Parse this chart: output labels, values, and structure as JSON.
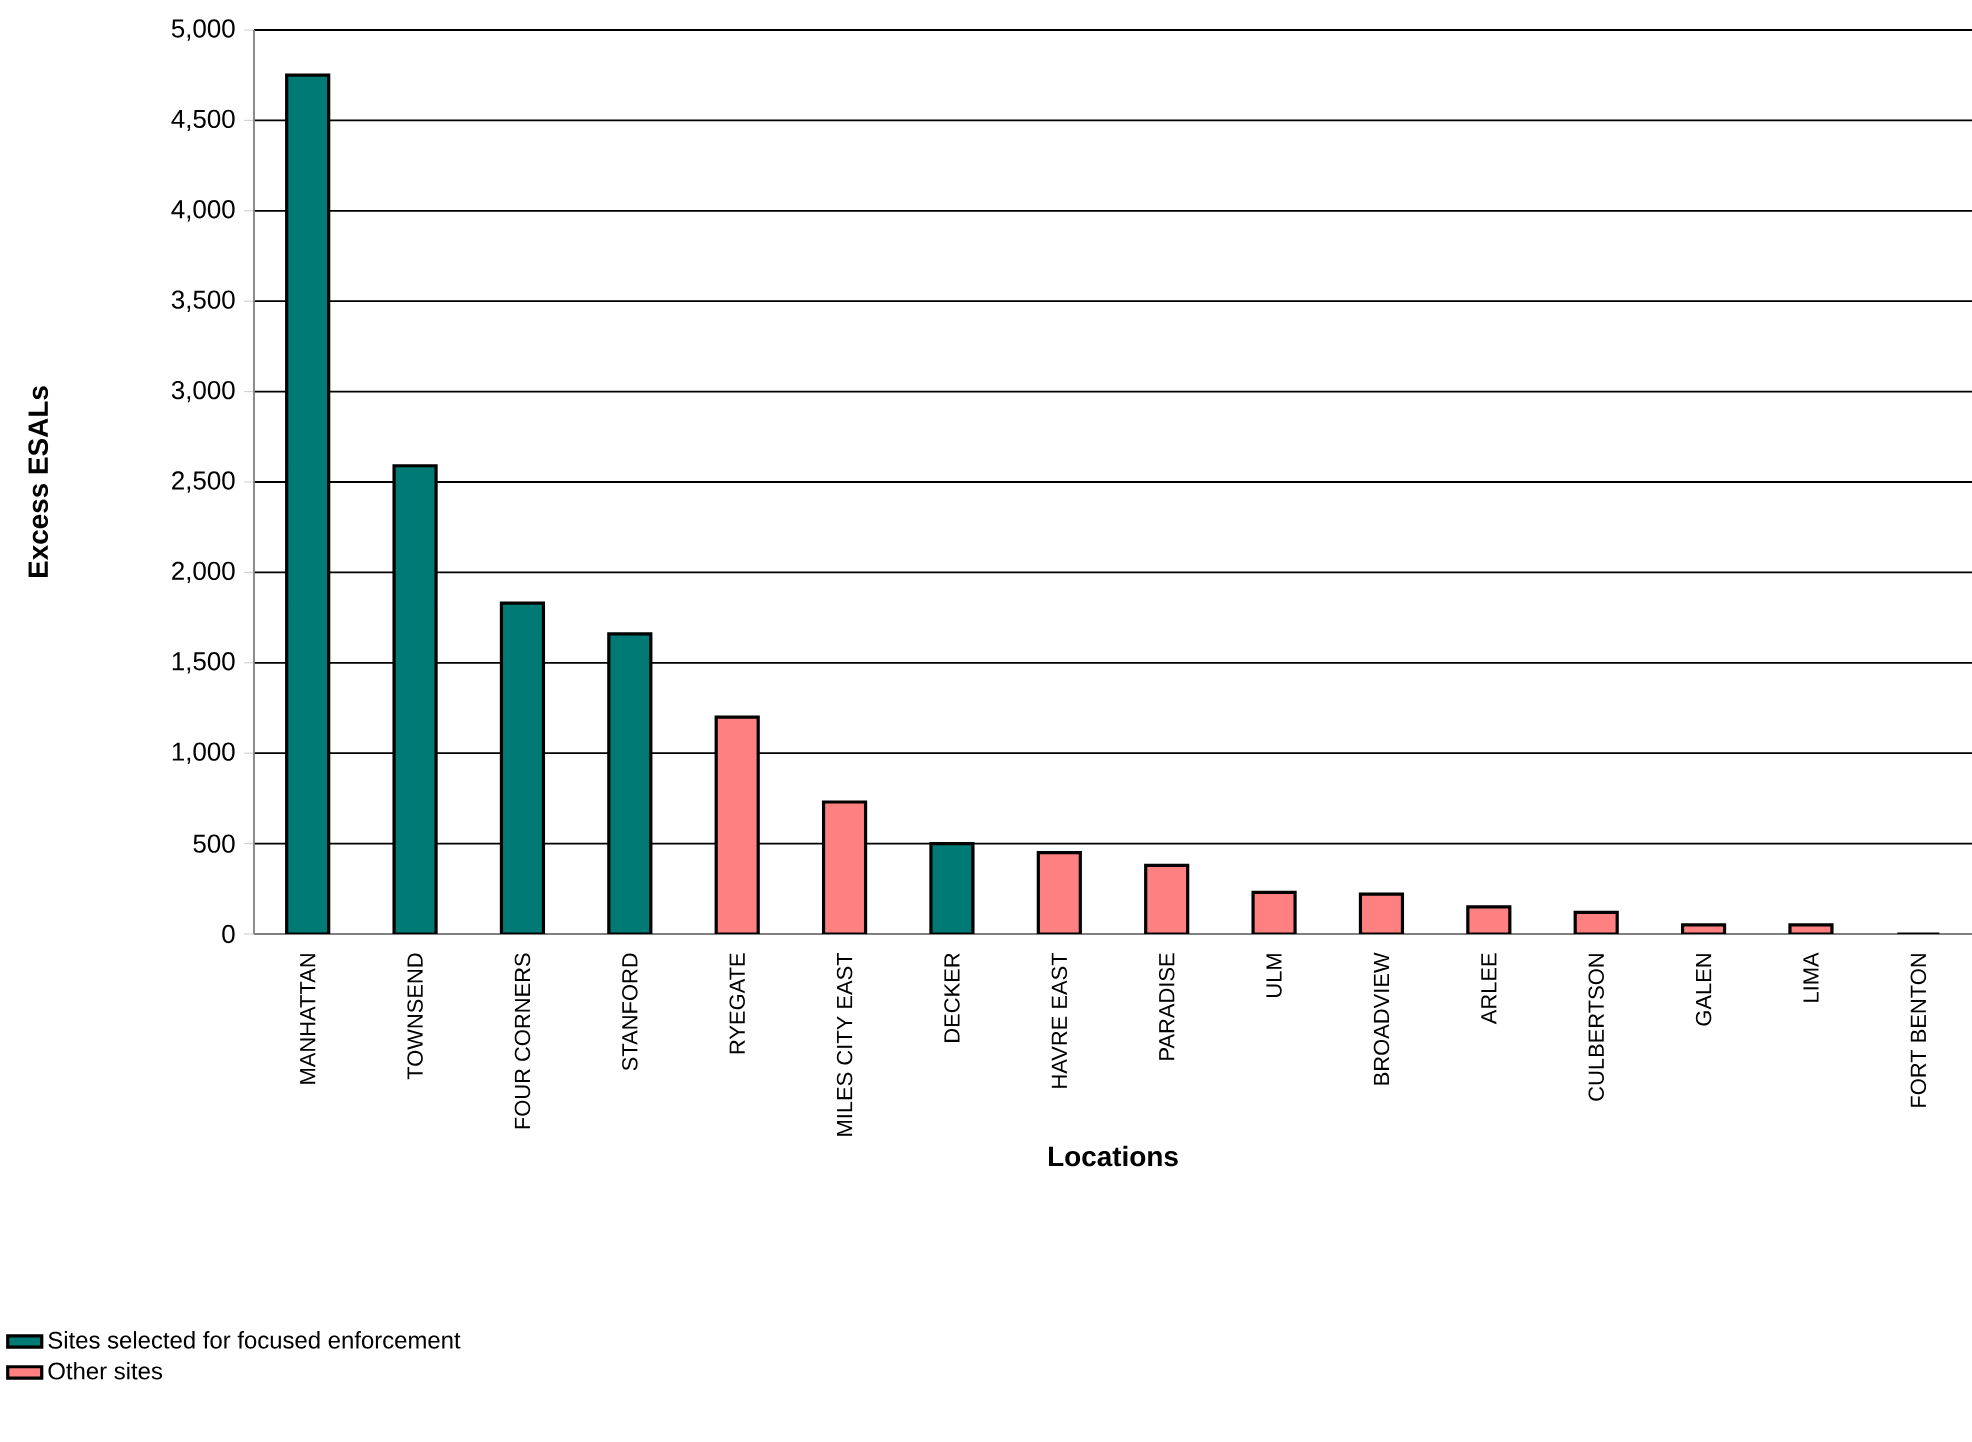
{
  "chart_data": {
    "type": "bar",
    "xlabel": "Locations",
    "ylabel": "Excess ESALs",
    "categories": [
      "MANHATTAN",
      "TOWNSEND",
      "FOUR CORNERS",
      "STANFORD",
      "RYEGATE",
      "MILES CITY EAST",
      "DECKER",
      "HAVRE EAST",
      "PARADISE",
      "ULM",
      "BROADVIEW",
      "ARLEE",
      "CULBERTSON",
      "GALEN",
      "LIMA",
      "FORT BENTON"
    ],
    "series": [
      {
        "name": "Sites selected for focused enforcement",
        "color": "#007a74",
        "values": [
          4750,
          2590,
          1830,
          1660,
          null,
          null,
          500,
          null,
          null,
          null,
          null,
          null,
          null,
          null,
          null,
          null
        ]
      },
      {
        "name": "Other sites",
        "color": "#ff8080",
        "values": [
          null,
          null,
          null,
          null,
          1200,
          730,
          null,
          450,
          380,
          230,
          220,
          150,
          120,
          50,
          50,
          0
        ]
      }
    ],
    "ylim": [
      0,
      5000
    ],
    "yticks": [
      0,
      {
        "value": 500,
        "label": "500"
      },
      {
        "value": 1000,
        "label": "1,000"
      },
      {
        "value": 1500,
        "label": "1,500"
      },
      {
        "value": 2000,
        "label": "2,000"
      },
      {
        "value": 2500,
        "label": "2,500"
      },
      {
        "value": 3000,
        "label": "3,000"
      },
      {
        "value": 3500,
        "label": "3,500"
      },
      {
        "value": 4000,
        "label": "4,000"
      },
      {
        "value": 4500,
        "label": "4,500"
      },
      {
        "value": 5000,
        "label": "5,000"
      }
    ],
    "grid": "y",
    "legend": "bottom left"
  }
}
